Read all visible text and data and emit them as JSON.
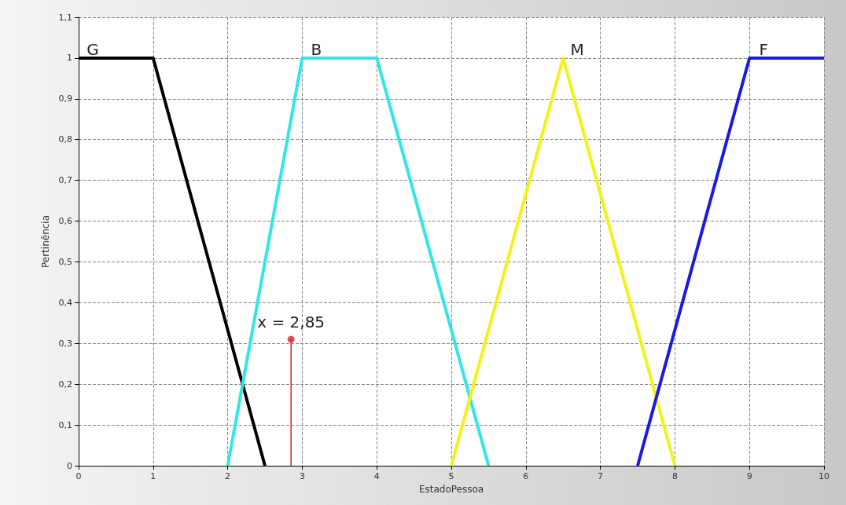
{
  "chart_data": {
    "type": "line",
    "xlabel": "EstadoPessoa",
    "ylabel": "Pertinência",
    "xlim": [
      0,
      10
    ],
    "xticks": [
      0,
      1,
      2,
      3,
      4,
      5,
      6,
      7,
      8,
      9,
      10
    ],
    "ylim": [
      0,
      1.1
    ],
    "yticks": [
      0,
      {
        "value": 0.1,
        "label": "0,1"
      },
      {
        "value": 0.2,
        "label": "0,2"
      },
      {
        "value": 0.3,
        "label": "0,3"
      },
      {
        "value": 0.4,
        "label": "0,4"
      },
      {
        "value": 0.5,
        "label": "0,5"
      },
      {
        "value": 0.6,
        "label": "0,6"
      },
      {
        "value": 0.7,
        "label": "0,7"
      },
      {
        "value": 0.8,
        "label": "0,8"
      },
      {
        "value": 0.9,
        "label": "0,9"
      },
      1,
      {
        "value": 1.1,
        "label": "1,1"
      }
    ],
    "grid": true,
    "legend": false,
    "marker": "none",
    "line_style": "solid",
    "series": [
      {
        "name": "G",
        "color": "#000000",
        "x": [
          0,
          1,
          2.5
        ],
        "values": [
          1,
          1,
          0
        ]
      },
      {
        "name": "B",
        "color": "#33e6e6",
        "x": [
          2,
          3,
          4,
          5.5
        ],
        "values": [
          0,
          1,
          1,
          0
        ]
      },
      {
        "name": "M",
        "color": "#f2f21a",
        "x": [
          5,
          6.5,
          8
        ],
        "values": [
          0,
          1,
          0
        ]
      },
      {
        "name": "F",
        "color": "#1a1ae6",
        "x": [
          7.5,
          9,
          10
        ],
        "values": [
          0,
          1,
          1
        ]
      },
      {
        "type": "lollipop",
        "marker": "circle",
        "color": "#e02020",
        "x": [
          2.85
        ],
        "values": [
          0.31
        ]
      }
    ],
    "annotations": [
      {
        "text": "x = 2,85",
        "x": 2.85,
        "y": 0.31
      }
    ]
  }
}
